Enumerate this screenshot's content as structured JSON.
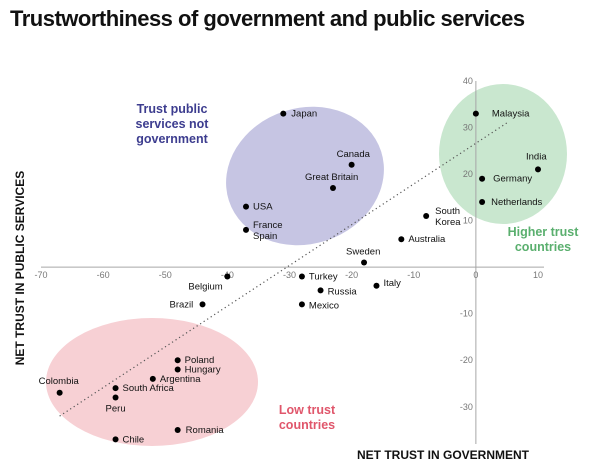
{
  "chart_data": {
    "type": "scatter",
    "title": "Trustworthiness of government and public services",
    "xlabel": "NET TRUST IN GOVERNMENT",
    "ylabel": "NET TRUST IN PUBLIC SERVICES",
    "xlim": [
      -70,
      10
    ],
    "ylim": [
      -38,
      40
    ],
    "x_ticks": [
      -70,
      -60,
      -50,
      -40,
      -30,
      -20,
      -10,
      0,
      10
    ],
    "y_ticks": [
      -30,
      -20,
      -10,
      10,
      20,
      30,
      40
    ],
    "grid": false,
    "trendline": {
      "x": [
        -67,
        5
      ],
      "y": [
        -32,
        31
      ],
      "style": "dotted"
    },
    "points": [
      {
        "name": "Japan",
        "x": -31,
        "y": 33
      },
      {
        "name": "Canada",
        "x": -20,
        "y": 22
      },
      {
        "name": "Great Britain",
        "x": -23,
        "y": 17
      },
      {
        "name": "USA",
        "x": -37,
        "y": 13
      },
      {
        "name": "France Spain",
        "x": -37,
        "y": 8
      },
      {
        "name": "Malaysia",
        "x": 0,
        "y": 33
      },
      {
        "name": "India",
        "x": 10,
        "y": 21
      },
      {
        "name": "Germany",
        "x": 1,
        "y": 19
      },
      {
        "name": "Netherlands",
        "x": 1,
        "y": 14
      },
      {
        "name": "South Korea",
        "x": -8,
        "y": 11
      },
      {
        "name": "Australia",
        "x": -12,
        "y": 6
      },
      {
        "name": "Sweden",
        "x": -18,
        "y": 1
      },
      {
        "name": "Belgium",
        "x": -40,
        "y": -2
      },
      {
        "name": "Turkey",
        "x": -28,
        "y": -2
      },
      {
        "name": "Russia",
        "x": -25,
        "y": -5
      },
      {
        "name": "Italy",
        "x": -16,
        "y": -4
      },
      {
        "name": "Brazil",
        "x": -44,
        "y": -8
      },
      {
        "name": "Mexico",
        "x": -28,
        "y": -8
      },
      {
        "name": "Poland",
        "x": -48,
        "y": -20
      },
      {
        "name": "Hungary",
        "x": -48,
        "y": -22
      },
      {
        "name": "Argentina",
        "x": -52,
        "y": -24
      },
      {
        "name": "Colombia",
        "x": -67,
        "y": -27
      },
      {
        "name": "South Africa",
        "x": -58,
        "y": -26
      },
      {
        "name": "Peru",
        "x": -58,
        "y": -28
      },
      {
        "name": "Romania",
        "x": -48,
        "y": -35
      },
      {
        "name": "Chile",
        "x": -58,
        "y": -37
      }
    ],
    "annotations": [
      {
        "lines": [
          "Trust public",
          "services not",
          "government"
        ],
        "color": "#3d3d8f"
      },
      {
        "lines": [
          "Higher trust",
          "countries"
        ],
        "color": "#5aaf6e"
      },
      {
        "lines": [
          "Low trust",
          "countries"
        ],
        "color": "#e0566b"
      }
    ]
  },
  "colors": {
    "blue_zone": "#c6c5e3",
    "green_zone": "#c9e7cf",
    "red_zone": "#f7d0d4",
    "axis": "#a6a6a6",
    "point": "#000000"
  }
}
